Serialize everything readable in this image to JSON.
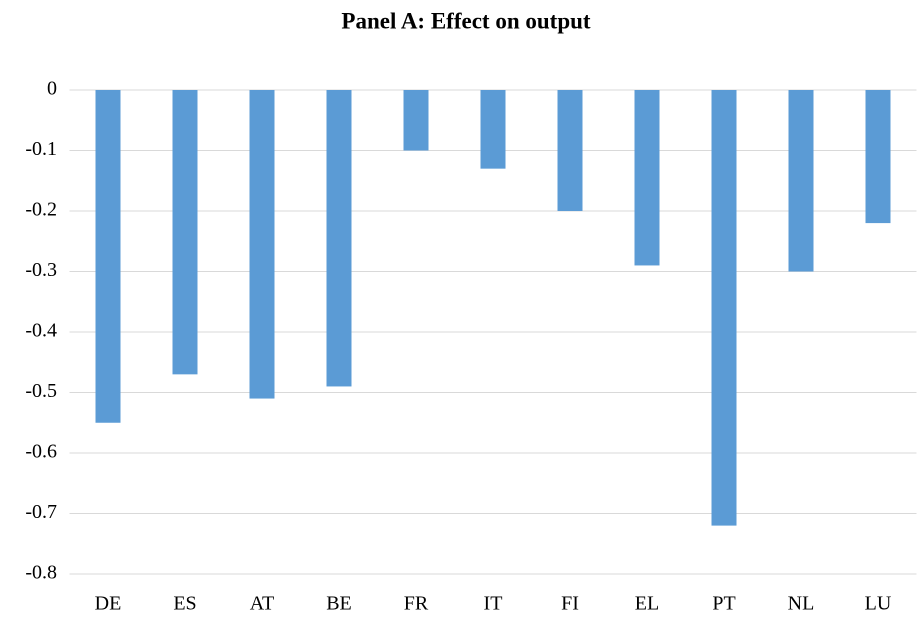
{
  "chart_data": {
    "type": "bar",
    "title": "Panel A: Effect on output",
    "categories": [
      "DE",
      "ES",
      "AT",
      "BE",
      "FR",
      "IT",
      "FI",
      "EL",
      "PT",
      "NL",
      "LU"
    ],
    "values": [
      -0.55,
      -0.47,
      -0.51,
      -0.49,
      -0.1,
      -0.13,
      -0.2,
      -0.29,
      -0.72,
      -0.3,
      -0.22
    ],
    "color": "#5b9bd5",
    "ylim": [
      -0.8,
      0
    ],
    "yticks": [
      0,
      -0.1,
      -0.2,
      -0.3,
      -0.4,
      -0.5,
      -0.6,
      -0.7,
      -0.8
    ],
    "grid": true
  }
}
